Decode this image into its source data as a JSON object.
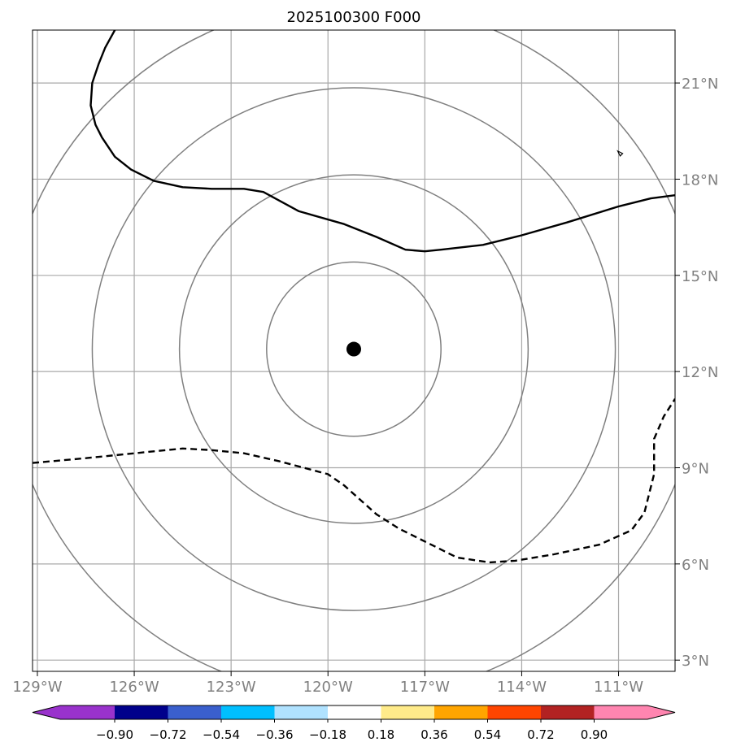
{
  "chart_data": {
    "type": "map",
    "title": "2025100300 F000",
    "projection": "lat-lon",
    "lon_range": [
      -129.15,
      -109.25
    ],
    "lat_range": [
      2.65,
      22.65
    ],
    "lon_ticks": [
      -129,
      -126,
      -123,
      -120,
      -117,
      -114,
      -111
    ],
    "lon_tick_labels": [
      "129°W",
      "126°W",
      "123°W",
      "120°W",
      "117°W",
      "114°W",
      "111°W"
    ],
    "lat_ticks": [
      3,
      6,
      9,
      12,
      15,
      18,
      21
    ],
    "lat_tick_labels": [
      "3°N",
      "6°N",
      "9°N",
      "12°N",
      "15°N",
      "18°N",
      "21°N"
    ],
    "grid": true,
    "storm_center": {
      "lon": -119.2,
      "lat": 12.7
    },
    "range_rings": {
      "radii_deg": [
        2.7,
        5.4,
        8.1,
        10.8
      ],
      "color": "#808080"
    },
    "solid_contour": [
      [
        -126.6,
        22.65
      ],
      [
        -126.9,
        22.1
      ],
      [
        -127.1,
        21.6
      ],
      [
        -127.3,
        21.0
      ],
      [
        -127.35,
        20.3
      ],
      [
        -127.2,
        19.7
      ],
      [
        -127.0,
        19.3
      ],
      [
        -126.6,
        18.7
      ],
      [
        -126.1,
        18.3
      ],
      [
        -125.4,
        17.95
      ],
      [
        -124.5,
        17.75
      ],
      [
        -123.6,
        17.7
      ],
      [
        -122.6,
        17.7
      ],
      [
        -122.0,
        17.6
      ],
      [
        -120.9,
        17.0
      ],
      [
        -119.5,
        16.6
      ],
      [
        -118.5,
        16.2
      ],
      [
        -117.6,
        15.8
      ],
      [
        -117.0,
        15.75
      ],
      [
        -116.5,
        15.8
      ],
      [
        -115.2,
        15.95
      ],
      [
        -114.0,
        16.25
      ],
      [
        -112.6,
        16.65
      ],
      [
        -111.0,
        17.15
      ],
      [
        -110.0,
        17.4
      ],
      [
        -109.25,
        17.5
      ]
    ],
    "dashed_contour": [
      [
        -129.15,
        9.15
      ],
      [
        -127.5,
        9.3
      ],
      [
        -126.0,
        9.45
      ],
      [
        -124.5,
        9.6
      ],
      [
        -123.6,
        9.55
      ],
      [
        -122.6,
        9.45
      ],
      [
        -121.5,
        9.2
      ],
      [
        -120.0,
        8.8
      ],
      [
        -119.5,
        8.45
      ],
      [
        -118.5,
        7.55
      ],
      [
        -117.8,
        7.1
      ],
      [
        -116.7,
        6.55
      ],
      [
        -116.0,
        6.2
      ],
      [
        -115.0,
        6.05
      ],
      [
        -114.2,
        6.1
      ],
      [
        -113.0,
        6.3
      ],
      [
        -111.6,
        6.6
      ],
      [
        -110.6,
        7.05
      ],
      [
        -110.2,
        7.6
      ],
      [
        -109.9,
        8.8
      ],
      [
        -109.9,
        9.9
      ],
      [
        -109.6,
        10.6
      ],
      [
        -109.25,
        11.15
      ]
    ],
    "small_island": {
      "lon": -110.95,
      "lat": 18.8
    },
    "colorbar": {
      "levels": [
        -0.9,
        -0.72,
        -0.54,
        -0.36,
        -0.18,
        0.18,
        0.36,
        0.54,
        0.72,
        0.9
      ],
      "tick_labels": [
        "−0.90",
        "−0.72",
        "−0.54",
        "−0.36",
        "−0.18",
        "0.18",
        "0.36",
        "0.54",
        "0.72",
        "0.90"
      ],
      "colors": [
        "#9932cc",
        "#00008b",
        "#3a5fcd",
        "#00bfff",
        "#b0e2ff",
        "#ffffff",
        "#ffeb8a",
        "#ffa500",
        "#ff4500",
        "#b22222",
        "#ff85b0"
      ],
      "extend": "both"
    }
  }
}
